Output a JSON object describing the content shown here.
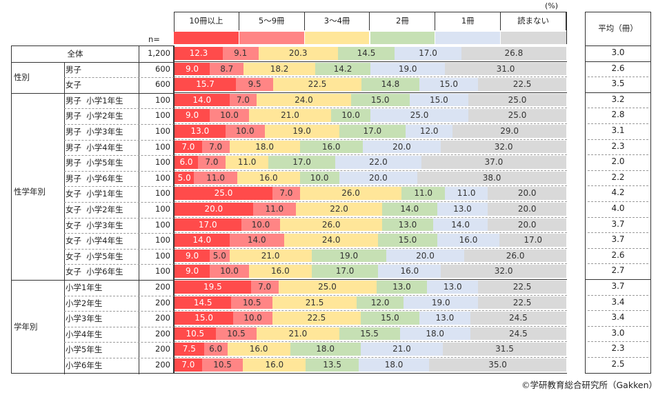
{
  "unit_label": "(%)",
  "n_label": "n=",
  "avg_header": "平均（冊）",
  "credit": "©学研教育総合研究所（Gakken）",
  "chart_data": {
    "type": "bar",
    "orientation": "horizontal-stacked-100",
    "categories_legend": [
      "10冊以上",
      "5～9冊",
      "3～4冊",
      "2冊",
      "1冊",
      "読まない"
    ],
    "colors": [
      "#ff4b4b",
      "#ff8585",
      "#ffe699",
      "#c6e0b4",
      "#dae3f3",
      "#d9d9d9"
    ],
    "xlim": [
      0,
      100
    ],
    "rows": [
      {
        "group": "全体",
        "label": "",
        "n": "1,200",
        "values": [
          "12.3",
          "9.1",
          "20.3",
          "14.5",
          "17.0",
          "26.8"
        ],
        "avg": "3.0"
      },
      {
        "group": "性別",
        "label": "男子",
        "n": "600",
        "values": [
          "9.0",
          "8.7",
          "18.2",
          "14.2",
          "19.0",
          "31.0"
        ],
        "avg": "2.6"
      },
      {
        "group": "性別",
        "label": "女子",
        "n": "600",
        "values": [
          "15.7",
          "9.5",
          "22.5",
          "14.8",
          "15.0",
          "22.5"
        ],
        "avg": "3.5"
      },
      {
        "group": "性学年別",
        "label": "男子  小学1年生",
        "n": "100",
        "values": [
          "14.0",
          "7.0",
          "24.0",
          "15.0",
          "15.0",
          "25.0"
        ],
        "avg": "3.2"
      },
      {
        "group": "性学年別",
        "label": "男子  小学2年生",
        "n": "100",
        "values": [
          "9.0",
          "10.0",
          "21.0",
          "10.0",
          "25.0",
          "25.0"
        ],
        "avg": "2.8"
      },
      {
        "group": "性学年別",
        "label": "男子  小学3年生",
        "n": "100",
        "values": [
          "13.0",
          "10.0",
          "19.0",
          "17.0",
          "12.0",
          "29.0"
        ],
        "avg": "3.1"
      },
      {
        "group": "性学年別",
        "label": "男子  小学4年生",
        "n": "100",
        "values": [
          "7.0",
          "7.0",
          "18.0",
          "16.0",
          "20.0",
          "32.0"
        ],
        "avg": "2.3"
      },
      {
        "group": "性学年別",
        "label": "男子  小学5年生",
        "n": "100",
        "values": [
          "6.0",
          "7.0",
          "11.0",
          "17.0",
          "22.0",
          "37.0"
        ],
        "avg": "2.0"
      },
      {
        "group": "性学年別",
        "label": "男子  小学6年生",
        "n": "100",
        "values": [
          "5.0",
          "11.0",
          "16.0",
          "10.0",
          "20.0",
          "38.0"
        ],
        "avg": "2.2"
      },
      {
        "group": "性学年別",
        "label": "女子  小学1年生",
        "n": "100",
        "values": [
          "25.0",
          "7.0",
          "26.0",
          "11.0",
          "11.0",
          "20.0"
        ],
        "avg": "4.2"
      },
      {
        "group": "性学年別",
        "label": "女子  小学2年生",
        "n": "100",
        "values": [
          "20.0",
          "11.0",
          "22.0",
          "14.0",
          "13.0",
          "20.0"
        ],
        "avg": "4.0"
      },
      {
        "group": "性学年別",
        "label": "女子  小学3年生",
        "n": "100",
        "values": [
          "17.0",
          "10.0",
          "26.0",
          "13.0",
          "14.0",
          "20.0"
        ],
        "avg": "3.7"
      },
      {
        "group": "性学年別",
        "label": "女子  小学4年生",
        "n": "100",
        "values": [
          "14.0",
          "14.0",
          "24.0",
          "15.0",
          "16.0",
          "17.0"
        ],
        "avg": "3.7"
      },
      {
        "group": "性学年別",
        "label": "女子  小学5年生",
        "n": "100",
        "values": [
          "9.0",
          "5.0",
          "21.0",
          "19.0",
          "20.0",
          "26.0"
        ],
        "avg": "2.6"
      },
      {
        "group": "性学年別",
        "label": "女子  小学6年生",
        "n": "100",
        "values": [
          "9.0",
          "10.0",
          "16.0",
          "17.0",
          "16.0",
          "32.0"
        ],
        "avg": "2.7"
      },
      {
        "group": "学年別",
        "label": "小学1年生",
        "n": "200",
        "values": [
          "19.5",
          "7.0",
          "25.0",
          "13.0",
          "13.0",
          "22.5"
        ],
        "avg": "3.7"
      },
      {
        "group": "学年別",
        "label": "小学2年生",
        "n": "200",
        "values": [
          "14.5",
          "10.5",
          "21.5",
          "12.0",
          "19.0",
          "22.5"
        ],
        "avg": "3.4"
      },
      {
        "group": "学年別",
        "label": "小学3年生",
        "n": "200",
        "values": [
          "15.0",
          "10.0",
          "22.5",
          "15.0",
          "13.0",
          "24.5"
        ],
        "avg": "3.4"
      },
      {
        "group": "学年別",
        "label": "小学4年生",
        "n": "200",
        "values": [
          "10.5",
          "10.5",
          "21.0",
          "15.5",
          "18.0",
          "24.5"
        ],
        "avg": "3.0"
      },
      {
        "group": "学年別",
        "label": "小学5年生",
        "n": "200",
        "values": [
          "7.5",
          "6.0",
          "16.0",
          "18.0",
          "21.0",
          "31.5"
        ],
        "avg": "2.3"
      },
      {
        "group": "学年別",
        "label": "小学6年生",
        "n": "200",
        "values": [
          "7.0",
          "10.5",
          "16.0",
          "13.5",
          "18.0",
          "35.0"
        ],
        "avg": "2.5"
      }
    ],
    "groups": [
      {
        "name": "全体",
        "start": 0,
        "end": 0
      },
      {
        "name": "性別",
        "start": 1,
        "end": 2
      },
      {
        "name": "性学年別",
        "start": 3,
        "end": 14
      },
      {
        "name": "学年別",
        "start": 15,
        "end": 20
      }
    ]
  }
}
